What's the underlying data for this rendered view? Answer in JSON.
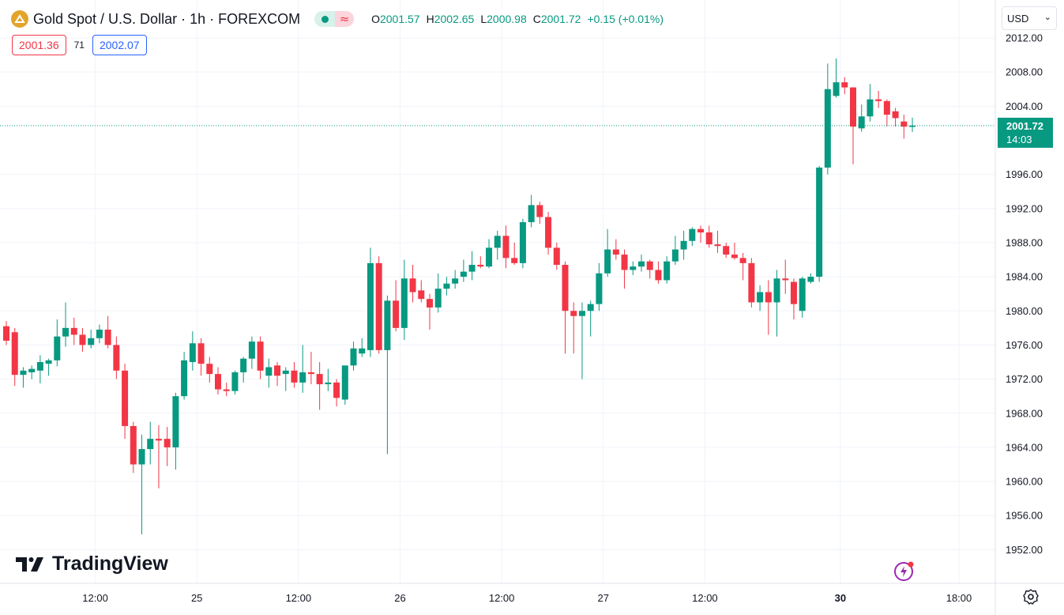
{
  "header": {
    "title": "Gold Spot / U.S. Dollar · 1h · FOREXCOM",
    "ohlc": {
      "o_label": "O",
      "o_value": "2001.57",
      "h_label": "H",
      "h_value": "2002.65",
      "l_label": "L",
      "l_value": "2000.98",
      "c_label": "C",
      "c_value": "2001.72",
      "change": "+0.15 (+0.01%)"
    }
  },
  "trade": {
    "sell": "2001.36",
    "spread": "71",
    "buy": "2002.07"
  },
  "currency": {
    "value": "USD"
  },
  "logo": {
    "text": "TradingView"
  },
  "colors": {
    "up": "#089981",
    "down": "#f23645",
    "grid": "#f0f3fa",
    "text": "#131722"
  },
  "icons": {
    "coin": "gold-coin-icon",
    "market_open": "market-open-dot-icon",
    "delayed": "delayed-data-icon",
    "chevron": "chevron-down-icon",
    "bolt": "lightning-icon",
    "settings": "gear-icon"
  },
  "chart_data": {
    "type": "candlestick",
    "y_ticks": [
      "2012.00",
      "2008.00",
      "2004.00",
      "1996.00",
      "1992.00",
      "1988.00",
      "1984.00",
      "1980.00",
      "1976.00",
      "1972.00",
      "1968.00",
      "1964.00",
      "1960.00",
      "1956.00",
      "1952.00"
    ],
    "x_ticks": [
      {
        "label": "12:00",
        "bar": 10.5,
        "bold": false
      },
      {
        "label": "25",
        "bar": 22.5,
        "bold": false
      },
      {
        "label": "12:00",
        "bar": 34.5,
        "bold": false
      },
      {
        "label": "26",
        "bar": 46.5,
        "bold": false
      },
      {
        "label": "12:00",
        "bar": 58.5,
        "bold": false
      },
      {
        "label": "27",
        "bar": 70.5,
        "bold": false
      },
      {
        "label": "12:00",
        "bar": 82.5,
        "bold": false
      },
      {
        "label": "30",
        "bar": 98.5,
        "bold": true
      },
      {
        "label": "18:00",
        "bar": 112.5,
        "bold": false
      }
    ],
    "last_price": {
      "value": 2001.72,
      "price_label": "2001.72",
      "countdown": "14:03"
    },
    "ohlc": [
      [
        1978.2,
        1978.8,
        1976.0,
        1976.5
      ],
      [
        1977.5,
        1978.0,
        1971.2,
        1972.5
      ],
      [
        1972.5,
        1973.4,
        1971.0,
        1973.0
      ],
      [
        1972.8,
        1973.6,
        1972.0,
        1973.2
      ],
      [
        1973.0,
        1974.8,
        1971.5,
        1974.0
      ],
      [
        1973.8,
        1974.4,
        1972.4,
        1974.2
      ],
      [
        1974.2,
        1979.0,
        1973.5,
        1977.0
      ],
      [
        1977.0,
        1981.0,
        1975.8,
        1978.0
      ],
      [
        1978.0,
        1979.2,
        1976.0,
        1977.2
      ],
      [
        1977.2,
        1978.0,
        1975.2,
        1976.0
      ],
      [
        1976.0,
        1977.8,
        1975.6,
        1976.8
      ],
      [
        1976.8,
        1978.4,
        1976.2,
        1977.8
      ],
      [
        1977.8,
        1979.4,
        1975.6,
        1976.0
      ],
      [
        1976.0,
        1977.0,
        1972.0,
        1973.0
      ],
      [
        1973.0,
        1973.8,
        1965.0,
        1966.5
      ],
      [
        1966.5,
        1967.0,
        1961.0,
        1962.0
      ],
      [
        1962.0,
        1965.5,
        1953.8,
        1963.8
      ],
      [
        1963.8,
        1967.0,
        1962.0,
        1965.0
      ],
      [
        1965.0,
        1966.6,
        1959.2,
        1964.8
      ],
      [
        1965.0,
        1966.4,
        1961.8,
        1964.0
      ],
      [
        1964.0,
        1970.4,
        1961.4,
        1970.0
      ],
      [
        1970.0,
        1975.2,
        1969.6,
        1974.2
      ],
      [
        1974.0,
        1977.6,
        1973.0,
        1976.2
      ],
      [
        1976.2,
        1976.8,
        1972.4,
        1973.8
      ],
      [
        1973.8,
        1974.6,
        1971.6,
        1972.6
      ],
      [
        1972.6,
        1973.4,
        1970.2,
        1970.8
      ],
      [
        1970.8,
        1971.6,
        1970.0,
        1970.6
      ],
      [
        1970.6,
        1973.0,
        1970.2,
        1972.8
      ],
      [
        1972.8,
        1974.6,
        1971.6,
        1974.4
      ],
      [
        1974.4,
        1977.0,
        1973.2,
        1976.4
      ],
      [
        1976.4,
        1977.0,
        1972.0,
        1973.0
      ],
      [
        1972.4,
        1974.4,
        1971.0,
        1973.4
      ],
      [
        1973.6,
        1974.0,
        1971.2,
        1972.4
      ],
      [
        1972.6,
        1973.4,
        1970.6,
        1973.0
      ],
      [
        1973.0,
        1974.0,
        1971.0,
        1971.6
      ],
      [
        1971.6,
        1976.0,
        1970.4,
        1972.8
      ],
      [
        1972.8,
        1975.2,
        1971.4,
        1972.6
      ],
      [
        1972.6,
        1974.0,
        1968.4,
        1971.4
      ],
      [
        1971.4,
        1973.2,
        1970.6,
        1971.6
      ],
      [
        1971.6,
        1972.0,
        1968.8,
        1969.8
      ],
      [
        1969.6,
        1973.2,
        1969.0,
        1973.6
      ],
      [
        1973.6,
        1976.4,
        1973.0,
        1975.6
      ],
      [
        1975.0,
        1976.8,
        1974.6,
        1975.6
      ],
      [
        1975.4,
        1987.4,
        1974.6,
        1985.6
      ],
      [
        1985.6,
        1986.4,
        1975.0,
        1975.4
      ],
      [
        1975.4,
        1981.8,
        1963.2,
        1981.2
      ],
      [
        1981.2,
        1983.6,
        1977.6,
        1978.0
      ],
      [
        1978.0,
        1986.0,
        1976.6,
        1983.8
      ],
      [
        1983.8,
        1985.4,
        1981.0,
        1982.2
      ],
      [
        1982.4,
        1983.6,
        1981.0,
        1981.4
      ],
      [
        1981.4,
        1982.0,
        1977.8,
        1980.4
      ],
      [
        1980.4,
        1984.4,
        1979.8,
        1982.6
      ],
      [
        1982.6,
        1984.0,
        1981.8,
        1983.2
      ],
      [
        1983.2,
        1984.8,
        1982.6,
        1983.8
      ],
      [
        1984.0,
        1986.0,
        1983.4,
        1984.6
      ],
      [
        1984.6,
        1987.0,
        1983.6,
        1985.4
      ],
      [
        1985.4,
        1986.4,
        1985.0,
        1985.2
      ],
      [
        1985.2,
        1988.4,
        1985.0,
        1987.4
      ],
      [
        1987.4,
        1989.4,
        1986.0,
        1988.8
      ],
      [
        1988.8,
        1990.0,
        1985.0,
        1986.2
      ],
      [
        1986.2,
        1988.0,
        1985.4,
        1985.6
      ],
      [
        1985.6,
        1990.8,
        1985.0,
        1990.4
      ],
      [
        1990.4,
        1993.6,
        1989.8,
        1992.4
      ],
      [
        1992.4,
        1992.8,
        1990.2,
        1991.0
      ],
      [
        1991.0,
        1991.6,
        1986.6,
        1987.4
      ],
      [
        1987.4,
        1988.0,
        1984.8,
        1985.4
      ],
      [
        1985.4,
        1985.8,
        1975.0,
        1980.0
      ],
      [
        1980.0,
        1981.0,
        1975.0,
        1979.4
      ],
      [
        1979.4,
        1981.0,
        1972.0,
        1980.0
      ],
      [
        1980.0,
        1981.2,
        1977.0,
        1980.8
      ],
      [
        1980.8,
        1985.6,
        1980.0,
        1984.4
      ],
      [
        1984.4,
        1989.6,
        1984.0,
        1987.2
      ],
      [
        1987.2,
        1988.4,
        1986.0,
        1986.6
      ],
      [
        1986.6,
        1987.2,
        1982.6,
        1984.8
      ],
      [
        1984.8,
        1985.8,
        1984.2,
        1985.2
      ],
      [
        1985.2,
        1986.6,
        1984.6,
        1985.8
      ],
      [
        1985.8,
        1986.0,
        1983.8,
        1984.8
      ],
      [
        1984.8,
        1985.8,
        1983.2,
        1983.6
      ],
      [
        1983.6,
        1986.4,
        1983.2,
        1985.8
      ],
      [
        1985.8,
        1988.8,
        1985.4,
        1987.2
      ],
      [
        1987.2,
        1989.4,
        1986.0,
        1988.2
      ],
      [
        1988.2,
        1989.8,
        1987.6,
        1989.6
      ],
      [
        1989.6,
        1990.0,
        1988.0,
        1989.2
      ],
      [
        1989.2,
        1990.0,
        1987.4,
        1987.8
      ],
      [
        1987.8,
        1989.4,
        1986.8,
        1987.6
      ],
      [
        1987.6,
        1988.0,
        1986.2,
        1986.6
      ],
      [
        1986.6,
        1988.0,
        1986.0,
        1986.2
      ],
      [
        1986.2,
        1986.8,
        1983.6,
        1985.6
      ],
      [
        1985.6,
        1986.2,
        1980.4,
        1981.0
      ],
      [
        1981.0,
        1983.0,
        1980.0,
        1982.2
      ],
      [
        1982.2,
        1983.6,
        1977.2,
        1981.0
      ],
      [
        1981.0,
        1984.8,
        1977.0,
        1983.8
      ],
      [
        1983.8,
        1986.0,
        1982.0,
        1983.6
      ],
      [
        1983.4,
        1983.8,
        1979.0,
        1980.8
      ],
      [
        1980.0,
        1984.0,
        1979.2,
        1983.8
      ],
      [
        1983.4,
        1984.4,
        1983.2,
        1984.0
      ],
      [
        1984.0,
        1997.0,
        1983.4,
        1996.8
      ],
      [
        1996.8,
        2009.0,
        1996.0,
        2006.0
      ],
      [
        2005.2,
        2009.6,
        2005.0,
        2006.8
      ],
      [
        2006.8,
        2007.4,
        2005.4,
        2006.2
      ],
      [
        2006.2,
        2006.2,
        1997.2,
        2001.6
      ],
      [
        2001.4,
        2004.2,
        2001.0,
        2002.8
      ],
      [
        2002.8,
        2006.6,
        2002.2,
        2004.8
      ],
      [
        2004.8,
        2005.8,
        2003.8,
        2004.6
      ],
      [
        2004.6,
        2004.8,
        2001.6,
        2003.0
      ],
      [
        2003.4,
        2003.8,
        2001.6,
        2002.6
      ],
      [
        2002.2,
        2003.0,
        2000.2,
        2001.6
      ],
      [
        2001.57,
        2002.65,
        2000.98,
        2001.72
      ]
    ]
  }
}
